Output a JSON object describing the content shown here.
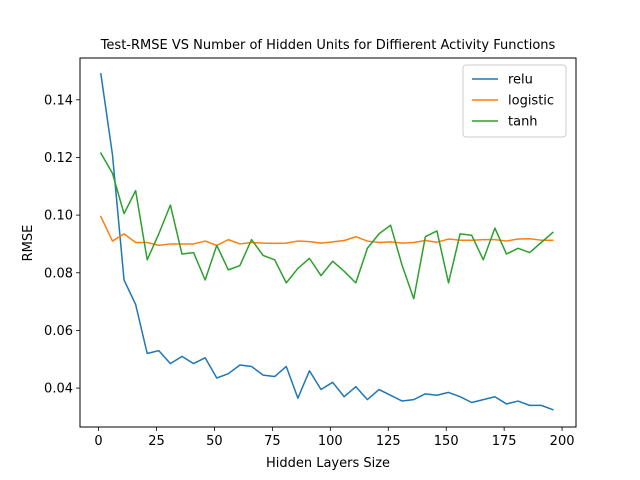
{
  "chart_data": {
    "type": "line",
    "title": "Test-RMSE VS Number of Hidden Units for Diffierent Activity Functions",
    "xlabel": "Hidden Layers Size",
    "ylabel": "RMSE",
    "xlim": [
      -8,
      206
    ],
    "ylim": [
      0.0265,
      0.1545
    ],
    "xticks": [
      0,
      25,
      50,
      75,
      100,
      125,
      150,
      175,
      200
    ],
    "yticks": [
      0.04,
      0.06,
      0.08,
      0.1,
      0.12,
      0.14
    ],
    "ytick_labels": [
      "0.04",
      "0.06",
      "0.08",
      "0.10",
      "0.12",
      "0.14"
    ],
    "grid": false,
    "legend_position": "top-right",
    "x": [
      1,
      6,
      11,
      16,
      21,
      26,
      31,
      36,
      41,
      46,
      51,
      56,
      61,
      66,
      71,
      76,
      81,
      86,
      91,
      96,
      101,
      106,
      111,
      116,
      121,
      126,
      131,
      136,
      141,
      146,
      151,
      156,
      161,
      166,
      171,
      176,
      181,
      186,
      191,
      196
    ],
    "series": [
      {
        "name": "relu",
        "color": "#1f77b4",
        "values": [
          0.149,
          0.121,
          0.0775,
          0.069,
          0.052,
          0.053,
          0.0485,
          0.051,
          0.0485,
          0.0505,
          0.0435,
          0.045,
          0.048,
          0.0475,
          0.0445,
          0.044,
          0.0475,
          0.0365,
          0.046,
          0.0395,
          0.042,
          0.037,
          0.0405,
          0.036,
          0.0395,
          0.0375,
          0.0355,
          0.036,
          0.038,
          0.0375,
          0.0385,
          0.037,
          0.035,
          0.036,
          0.037,
          0.0345,
          0.0355,
          0.034,
          0.034,
          0.0325
        ]
      },
      {
        "name": "logistic",
        "color": "#ff7f0e",
        "values": [
          0.0995,
          0.091,
          0.0935,
          0.0905,
          0.0905,
          0.0895,
          0.09,
          0.09,
          0.09,
          0.091,
          0.0895,
          0.0915,
          0.09,
          0.0905,
          0.0903,
          0.0902,
          0.0903,
          0.091,
          0.0908,
          0.0903,
          0.0907,
          0.0912,
          0.0925,
          0.091,
          0.0905,
          0.0907,
          0.0903,
          0.0905,
          0.0912,
          0.0906,
          0.0917,
          0.0913,
          0.0913,
          0.0915,
          0.0915,
          0.091,
          0.0917,
          0.0918,
          0.0913,
          0.0913
        ]
      },
      {
        "name": "tanh",
        "color": "#2ca02c",
        "values": [
          0.1215,
          0.1145,
          0.1005,
          0.1085,
          0.0845,
          0.0935,
          0.1035,
          0.0865,
          0.087,
          0.0775,
          0.0895,
          0.081,
          0.0825,
          0.0915,
          0.086,
          0.0845,
          0.0765,
          0.0815,
          0.085,
          0.079,
          0.084,
          0.0805,
          0.0765,
          0.0885,
          0.0935,
          0.0965,
          0.0825,
          0.071,
          0.0925,
          0.0945,
          0.0765,
          0.0935,
          0.093,
          0.0845,
          0.0955,
          0.0865,
          0.0885,
          0.087,
          0.0905,
          0.094
        ]
      }
    ]
  }
}
